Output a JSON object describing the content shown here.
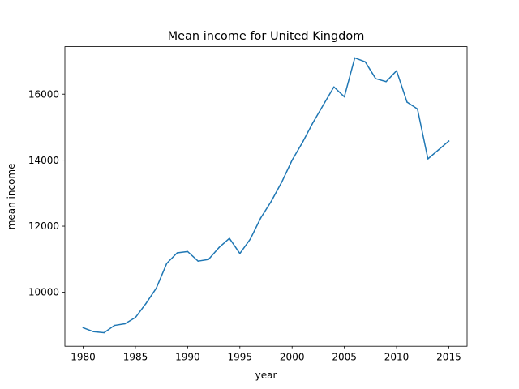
{
  "chart_data": {
    "type": "line",
    "title": "Mean income for United Kingdom",
    "xlabel": "year",
    "ylabel": "mean income",
    "xlim": [
      1978.25,
      2016.75
    ],
    "ylim": [
      8360,
      17440
    ],
    "xticks": [
      1980,
      1985,
      1990,
      1995,
      2000,
      2005,
      2010,
      2015
    ],
    "yticks": [
      10000,
      12000,
      14000,
      16000
    ],
    "grid": false,
    "legend": "none",
    "series": [
      {
        "color": "#1f77b4",
        "x": [
          1980,
          1981,
          1982,
          1983,
          1984,
          1985,
          1986,
          1987,
          1988,
          1989,
          1990,
          1991,
          1992,
          1993,
          1994,
          1995,
          1996,
          1997,
          1998,
          1999,
          2000,
          2001,
          2002,
          2003,
          2004,
          2005,
          2006,
          2007,
          2008,
          2009,
          2010,
          2011,
          2012,
          2013,
          2014,
          2015
        ],
        "values": [
          8920,
          8800,
          8770,
          8990,
          9040,
          9230,
          9650,
          10120,
          10870,
          11190,
          11230,
          10940,
          10990,
          11350,
          11630,
          11170,
          11610,
          12250,
          12750,
          13330,
          14000,
          14540,
          15140,
          15680,
          16220,
          15920,
          17100,
          16980,
          16470,
          16380,
          16710,
          15760,
          15550,
          14040,
          14310,
          14580
        ]
      }
    ]
  }
}
